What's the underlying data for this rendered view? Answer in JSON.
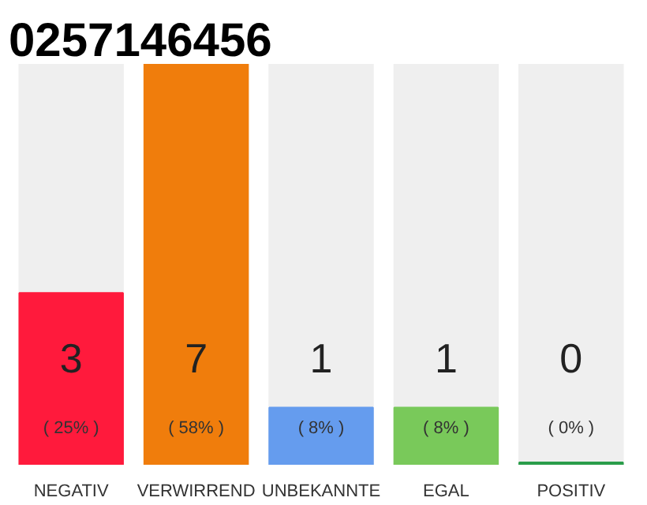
{
  "chart_data": {
    "type": "bar",
    "title": "0257146456",
    "categories": [
      "NEGATIV",
      "VERWIRREND",
      "UNBEKANNTE",
      "EGAL",
      "POSITIV"
    ],
    "values": [
      3,
      7,
      1,
      1,
      0
    ],
    "colors": [
      "#ff1a3c",
      "#f07d0c",
      "#659cee",
      "#79c95a",
      "#2a9d4a"
    ],
    "value_labels": [
      "3",
      "7",
      "1",
      "1",
      "0"
    ],
    "annotations": [
      "( 25% )",
      "( 58% )",
      "( 8% )",
      "( 8% )",
      "( 0% )"
    ],
    "grid": false,
    "tick_labels": "x"
  }
}
